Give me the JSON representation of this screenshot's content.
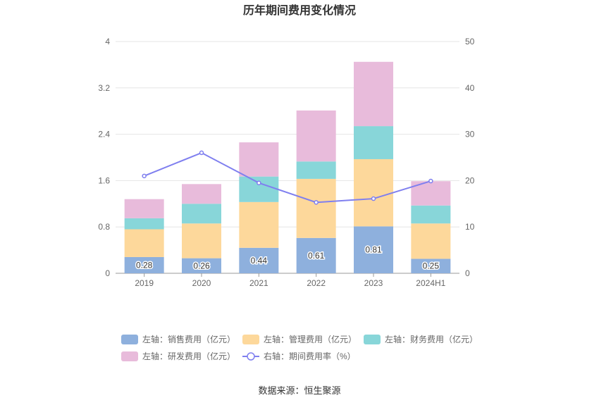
{
  "chart_data": {
    "type": "bar",
    "title": "历年期间费用变化情况",
    "categories": [
      "2019",
      "2020",
      "2021",
      "2022",
      "2023",
      "2024H1"
    ],
    "left_axis": {
      "ylim": [
        0,
        4
      ],
      "ticks": [
        "0",
        "0.8",
        "1.6",
        "2.4",
        "3.2",
        "4"
      ]
    },
    "right_axis": {
      "ylim": [
        0,
        50
      ],
      "ticks": [
        "0",
        "10",
        "20",
        "30",
        "40",
        "50"
      ]
    },
    "series": [
      {
        "name": "左轴：销售费用（亿元）",
        "axis": "left",
        "stack": true,
        "color": "#8eb0dd",
        "values": [
          0.28,
          0.26,
          0.44,
          0.61,
          0.81,
          0.25
        ],
        "labels": [
          "0.28",
          "0.26",
          "0.44",
          "0.61",
          "0.81",
          "0.25"
        ]
      },
      {
        "name": "左轴：管理费用（亿元）",
        "axis": "left",
        "stack": true,
        "color": "#fdd89b",
        "values": [
          0.48,
          0.6,
          0.79,
          1.02,
          1.16,
          0.61
        ]
      },
      {
        "name": "左轴：财务费用（亿元）",
        "axis": "left",
        "stack": true,
        "color": "#88d6d9",
        "values": [
          0.19,
          0.34,
          0.44,
          0.3,
          0.57,
          0.31
        ]
      },
      {
        "name": "左轴：研发费用（亿元）",
        "axis": "left",
        "stack": true,
        "color": "#e8bbdb",
        "values": [
          0.33,
          0.34,
          0.59,
          0.88,
          1.11,
          0.42
        ]
      },
      {
        "name": "右轴：期间费用率（%）",
        "axis": "right",
        "type": "line",
        "color": "#7f7fef",
        "values": [
          21.0,
          26.0,
          19.5,
          15.3,
          16.1,
          19.9
        ]
      }
    ],
    "legend_position": "bottom"
  },
  "source": "数据来源：恒生聚源"
}
